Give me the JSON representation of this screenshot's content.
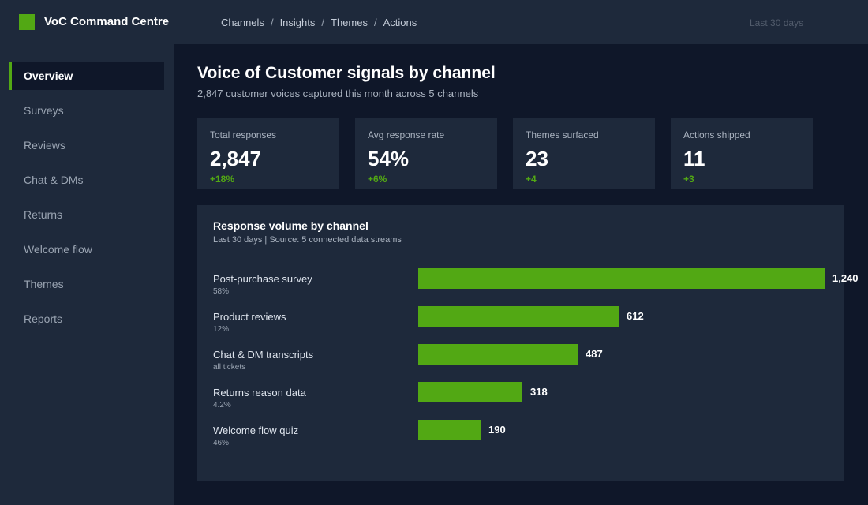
{
  "app": {
    "title": "VoC Command Centre",
    "accent": "#52a814",
    "logo_icon": "square-logo-icon"
  },
  "breadcrumb": [
    "Channels",
    "Insights",
    "Themes",
    "Actions"
  ],
  "breadcrumb_separator": "/",
  "date_range": "Last 30 days",
  "sidebar": {
    "items": [
      {
        "label": "Overview",
        "active": true
      },
      {
        "label": "Surveys"
      },
      {
        "label": "Reviews"
      },
      {
        "label": "Chat & DMs"
      },
      {
        "label": "Returns"
      },
      {
        "label": "Welcome flow"
      },
      {
        "label": "Themes"
      },
      {
        "label": "Reports"
      }
    ]
  },
  "header": {
    "title": "Voice of Customer signals by channel",
    "subtitle": "2,847 customer voices captured this month across 5 channels"
  },
  "kpis": [
    {
      "label": "Total responses",
      "value": "2,847",
      "delta": "+18%"
    },
    {
      "label": "Avg response rate",
      "value": "54%",
      "delta": "+6%"
    },
    {
      "label": "Themes surfaced",
      "value": "23",
      "delta": "+4"
    },
    {
      "label": "Actions shipped",
      "value": "11",
      "delta": "+3"
    }
  ],
  "chart_data": {
    "type": "bar",
    "orientation": "horizontal",
    "title": "Response volume by channel",
    "subtitle": "Last 30 days  |  Source: 5 connected data streams",
    "categories": [
      "Post-purchase survey",
      "Product reviews",
      "Chat & DM transcripts",
      "Returns reason data",
      "Welcome flow quiz"
    ],
    "category_notes": [
      "58%",
      "12%",
      "all tickets",
      "4.2%",
      "46%"
    ],
    "values": [
      1240,
      612,
      487,
      318,
      190
    ],
    "value_labels": [
      "1,240",
      "612",
      "487",
      "318",
      "190"
    ],
    "xlim": [
      0,
      1240
    ],
    "grid": false,
    "legend": false,
    "bar_color": "#52a814"
  }
}
